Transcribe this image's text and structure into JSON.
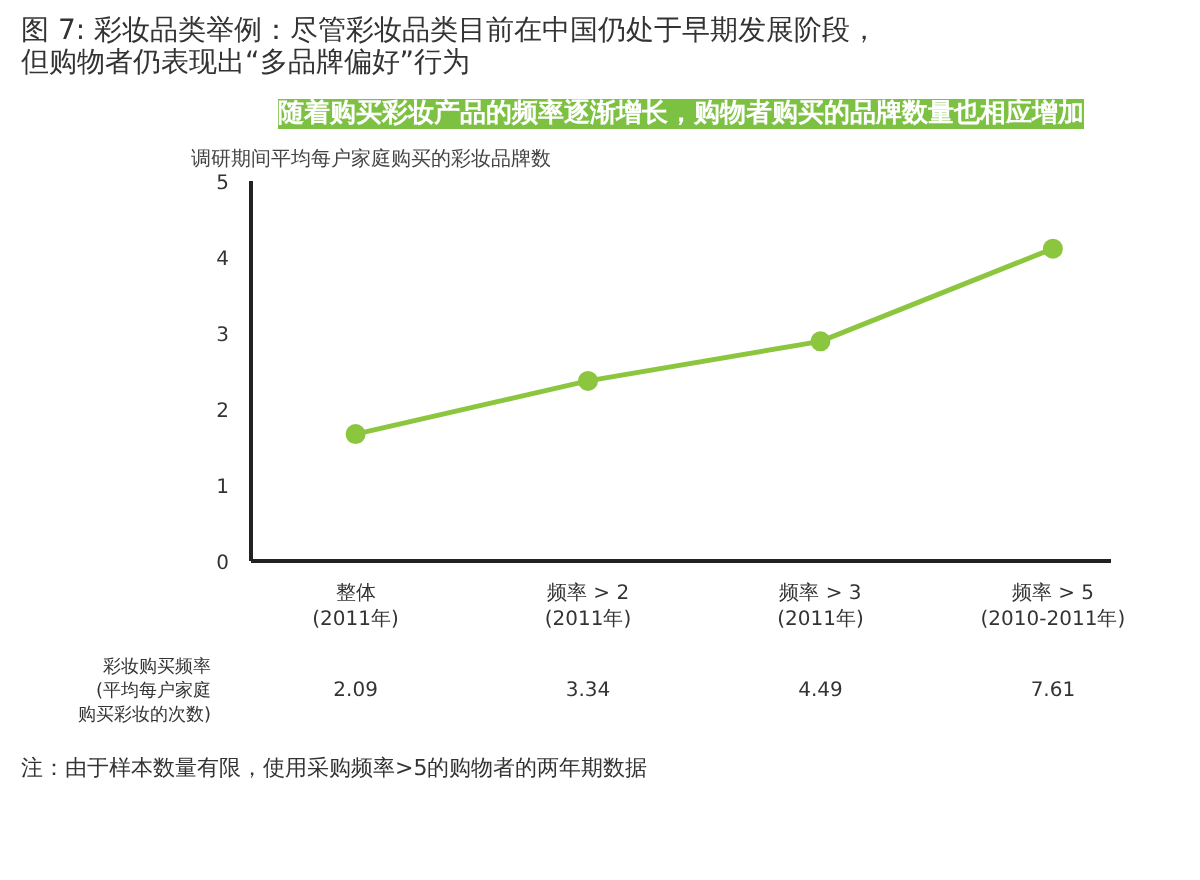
{
  "chart_data": {
    "type": "line",
    "title": "图 7: 彩妆品类举例：尽管彩妆品类目前在中国仍处于早期发展阶段，但购物者仍表现出“多品牌偏好”行为",
    "subtitle": "随着购买彩妆产品的频率逐渐增长，购物者购买的品牌数量也相应增加",
    "ylabel": "调研期间平均每户家庭购买的彩妆品牌数",
    "categories": [
      "整体\n(2011年)",
      "频率 > 2\n(2011年)",
      "频率 > 3\n(2011年)",
      "频率 > 5\n(2010-2011年)"
    ],
    "series": [
      {
        "color": "#8cc63f",
        "values": [
          1.67,
          2.37,
          2.89,
          4.11
        ]
      }
    ],
    "ylim": [
      0,
      5
    ],
    "yticks": [
      0,
      1,
      2,
      3,
      4,
      5
    ],
    "grid": false,
    "marker": "circle",
    "line_style": "solid",
    "annotations": [
      "彩妆购买频率(平均每户家庭购买彩妆的次数)",
      "2.09",
      "3.34",
      "4.49",
      "7.61",
      "注：由于样本数量有限，使用采购频率>5的购物者的两年期数据"
    ]
  }
}
